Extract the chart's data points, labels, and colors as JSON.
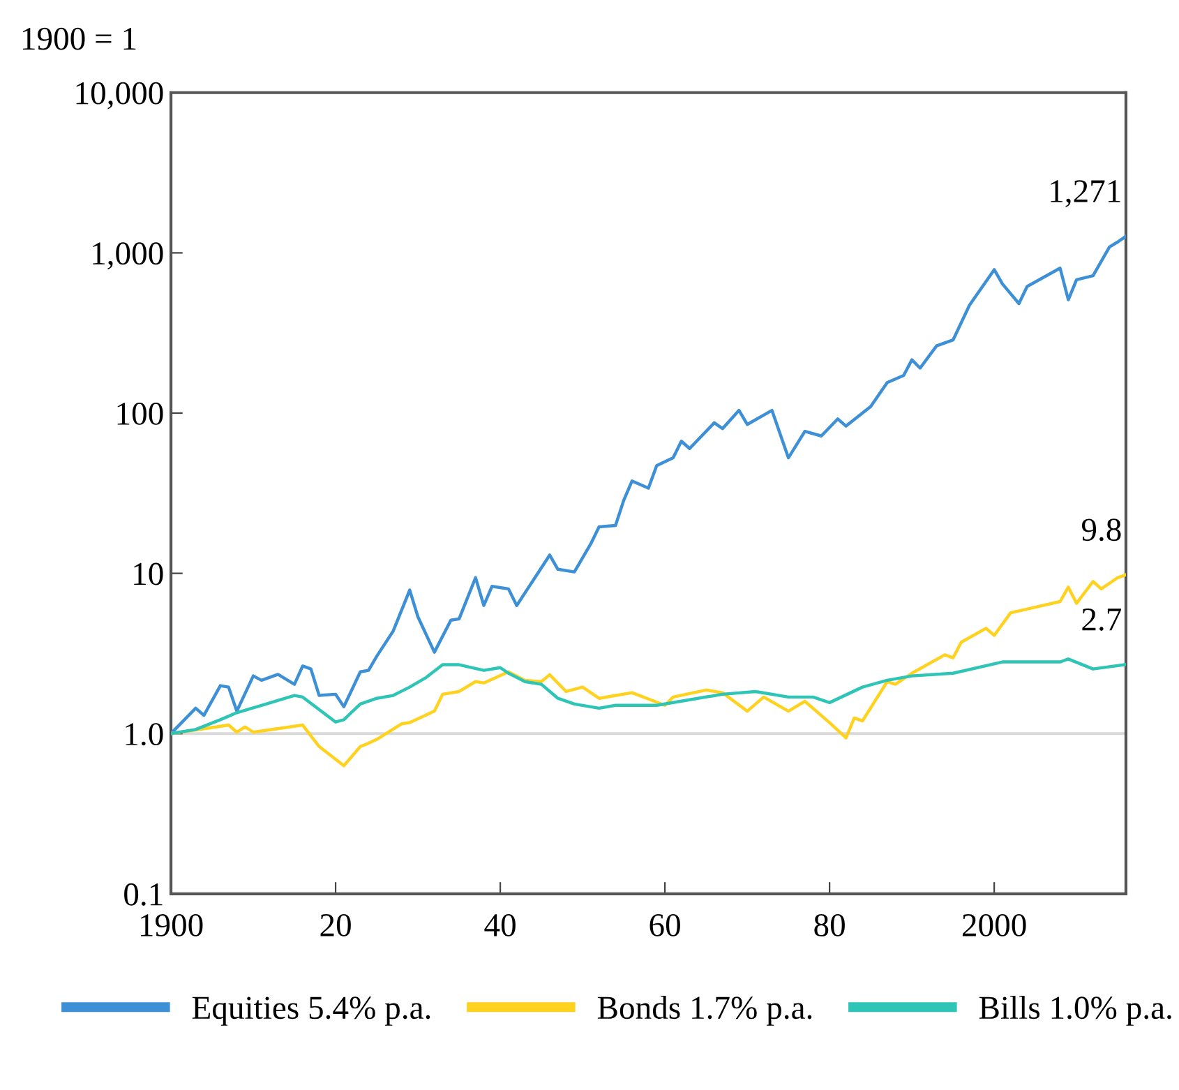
{
  "chart_data": {
    "type": "line",
    "ylabel": "1900 = 1",
    "log": "y",
    "xlim": [
      1900,
      2016
    ],
    "ylim": [
      0.1,
      10000
    ],
    "xticks": [
      1900,
      {
        "value": 1920,
        "label": "20"
      },
      {
        "value": 1940,
        "label": "40"
      },
      {
        "value": 1960,
        "label": "60"
      },
      {
        "value": 1980,
        "label": "80"
      },
      2000
    ],
    "yticks": [
      {
        "value": 0.1,
        "label": "0.1"
      },
      {
        "value": 1,
        "label": "1.0"
      },
      10,
      100,
      {
        "value": 1000,
        "label": "1,000"
      },
      {
        "value": 10000,
        "label": "10,000"
      }
    ],
    "grid": false,
    "legend": "bottom",
    "line_style": "solid",
    "marker": "none",
    "ref_lines": [
      {
        "axis": "y",
        "value": 1,
        "color": "#d9d9d9"
      }
    ],
    "series": [
      {
        "name": "Equities 5.4% p.a.",
        "color": "#3d8fd6",
        "x": [
          1900,
          1903,
          1904,
          1906,
          1907,
          1908,
          1910,
          1911,
          1913,
          1915,
          1916,
          1917,
          1918,
          1920,
          1921,
          1923,
          1924,
          1925,
          1927,
          1929,
          1930,
          1932,
          1934,
          1935,
          1937,
          1938,
          1939,
          1941,
          1942,
          1946,
          1947,
          1949,
          1951,
          1952,
          1954,
          1955,
          1956,
          1958,
          1959,
          1961,
          1962,
          1963,
          1966,
          1967,
          1969,
          1970,
          1973,
          1975,
          1977,
          1979,
          1981,
          1982,
          1985,
          1987,
          1989,
          1990,
          1991,
          1993,
          1995,
          1997,
          2000,
          2001,
          2003,
          2004,
          2008,
          2009,
          2010,
          2012,
          2014,
          2015,
          2016
        ],
        "values": [
          1.0,
          1.44,
          1.3,
          1.99,
          1.95,
          1.38,
          2.29,
          2.15,
          2.34,
          2.03,
          2.64,
          2.53,
          1.73,
          1.76,
          1.47,
          2.43,
          2.48,
          3.04,
          4.37,
          7.86,
          5.35,
          3.22,
          5.1,
          5.2,
          9.4,
          6.3,
          8.3,
          8.0,
          6.3,
          13.0,
          10.6,
          10.2,
          15.3,
          19.5,
          19.9,
          28.6,
          37.7,
          34,
          47,
          52.6,
          66.8,
          60.1,
          87,
          80,
          104,
          85,
          104,
          52.6,
          77,
          72,
          92,
          83,
          110,
          155,
          172,
          215,
          191,
          263,
          286,
          472,
          786,
          640,
          483,
          617,
          803,
          510,
          680,
          720,
          1090,
          1170,
          1271
        ],
        "value_labels": [
          null,
          null,
          null,
          null,
          null,
          null,
          null,
          null,
          null,
          null,
          null,
          null,
          null,
          null,
          null,
          null,
          null,
          null,
          null,
          null,
          null,
          null,
          null,
          null,
          null,
          null,
          null,
          null,
          null,
          null,
          null,
          null,
          null,
          null,
          null,
          null,
          null,
          null,
          null,
          null,
          null,
          null,
          null,
          null,
          null,
          null,
          null,
          null,
          null,
          null,
          null,
          null,
          null,
          null,
          null,
          null,
          null,
          null,
          null,
          null,
          null,
          null,
          null,
          null,
          null,
          null,
          null,
          null,
          null,
          null,
          "1,271"
        ]
      },
      {
        "name": "Bonds 1.7% p.a.",
        "color": "#ffd21f",
        "x": [
          1900,
          1907,
          1908,
          1909,
          1910,
          1916,
          1918,
          1921,
          1923,
          1924,
          1925,
          1928,
          1929,
          1932,
          1933,
          1935,
          1937,
          1938,
          1941,
          1943,
          1945,
          1946,
          1948,
          1950,
          1952,
          1956,
          1960,
          1961,
          1965,
          1967,
          1970,
          1972,
          1975,
          1977,
          1980,
          1982,
          1983,
          1984,
          1987,
          1988,
          1990,
          1994,
          1995,
          1996,
          1999,
          2000,
          2001,
          2002,
          2005,
          2008,
          2009,
          2010,
          2012,
          2013,
          2015,
          2016
        ],
        "values": [
          1.0,
          1.13,
          1.02,
          1.1,
          1.02,
          1.13,
          0.83,
          0.63,
          0.83,
          0.87,
          0.92,
          1.15,
          1.17,
          1.38,
          1.76,
          1.83,
          2.11,
          2.07,
          2.43,
          2.15,
          2.11,
          2.33,
          1.83,
          1.95,
          1.66,
          1.8,
          1.5,
          1.69,
          1.87,
          1.8,
          1.38,
          1.69,
          1.38,
          1.59,
          1.17,
          0.94,
          1.25,
          1.2,
          2.11,
          2.03,
          2.38,
          3.1,
          2.97,
          3.72,
          4.54,
          4.1,
          4.83,
          5.67,
          6.15,
          6.67,
          8.2,
          6.5,
          8.9,
          8.0,
          9.4,
          9.8
        ],
        "value_labels": [
          null,
          null,
          null,
          null,
          null,
          null,
          null,
          null,
          null,
          null,
          null,
          null,
          null,
          null,
          null,
          null,
          null,
          null,
          null,
          null,
          null,
          null,
          null,
          null,
          null,
          null,
          null,
          null,
          null,
          null,
          null,
          null,
          null,
          null,
          null,
          null,
          null,
          null,
          null,
          null,
          null,
          null,
          null,
          null,
          null,
          null,
          null,
          null,
          null,
          null,
          null,
          null,
          null,
          null,
          null,
          "9.8"
        ]
      },
      {
        "name": "Bills 1.0% p.a.",
        "color": "#2ec4b6",
        "x": [
          1900,
          1903,
          1906,
          1908,
          1911,
          1915,
          1916,
          1920,
          1921,
          1923,
          1925,
          1927,
          1929,
          1931,
          1933,
          1935,
          1938,
          1940,
          1941,
          1943,
          1945,
          1947,
          1949,
          1952,
          1954,
          1959,
          1967,
          1971,
          1975,
          1978,
          1980,
          1984,
          1987,
          1990,
          1995,
          2001,
          2008,
          2009,
          2012,
          2016
        ],
        "values": [
          1.0,
          1.06,
          1.22,
          1.35,
          1.5,
          1.73,
          1.69,
          1.18,
          1.22,
          1.53,
          1.66,
          1.73,
          1.95,
          2.24,
          2.69,
          2.69,
          2.48,
          2.58,
          2.38,
          2.11,
          2.03,
          1.66,
          1.53,
          1.44,
          1.5,
          1.5,
          1.76,
          1.83,
          1.69,
          1.69,
          1.56,
          1.95,
          2.15,
          2.29,
          2.38,
          2.8,
          2.8,
          2.92,
          2.53,
          2.7
        ],
        "value_labels": [
          null,
          null,
          null,
          null,
          null,
          null,
          null,
          null,
          null,
          null,
          null,
          null,
          null,
          null,
          null,
          null,
          null,
          null,
          null,
          null,
          null,
          null,
          null,
          null,
          null,
          null,
          null,
          null,
          null,
          null,
          null,
          null,
          null,
          null,
          null,
          null,
          null,
          null,
          null,
          "2.7"
        ]
      }
    ]
  }
}
